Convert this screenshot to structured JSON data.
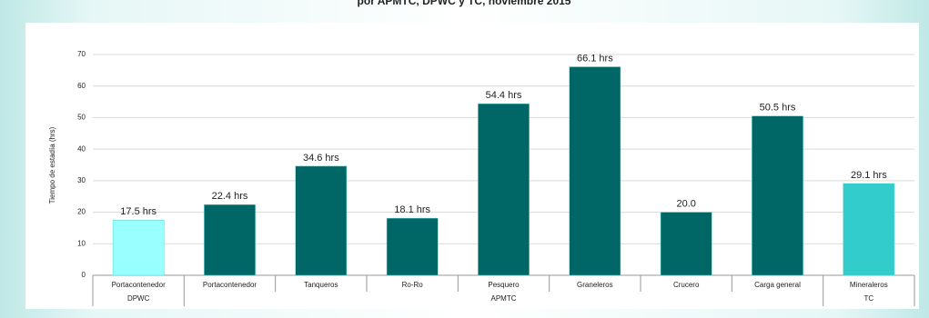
{
  "chart_data": {
    "type": "bar",
    "title": "por APMTC, DPWC y TC, noviembre 2015",
    "y_label": "Tiempo de estadía (hrs)",
    "ylim": [
      0,
      70
    ],
    "yticks": [
      0,
      10,
      20,
      30,
      40,
      50,
      60,
      70
    ],
    "grid": true,
    "groups": [
      {
        "label": "DPWC",
        "color": "#99ffff",
        "categories": [
          "Portacontenedor"
        ],
        "values": [
          17.5
        ],
        "value_labels": [
          "17.5 hrs"
        ]
      },
      {
        "label": "APMTC",
        "color": "#006666",
        "categories": [
          "Portacontenedor",
          "Tanqueros",
          "Ro-Ro",
          "Pesquero",
          "Graneleros",
          "Crucero",
          "Carga general"
        ],
        "values": [
          22.4,
          34.6,
          18.1,
          54.4,
          66.1,
          20.0,
          50.5
        ],
        "value_labels": [
          "22.4 hrs",
          "34.6 hrs",
          "18.1 hrs",
          "54.4 hrs",
          "66.1 hrs",
          "20.0",
          "50.5 hrs"
        ]
      },
      {
        "label": "TC",
        "color": "#33cccc",
        "categories": [
          "Mineraleros"
        ],
        "values": [
          29.1
        ],
        "value_labels": [
          "29.1 hrs"
        ]
      }
    ]
  }
}
